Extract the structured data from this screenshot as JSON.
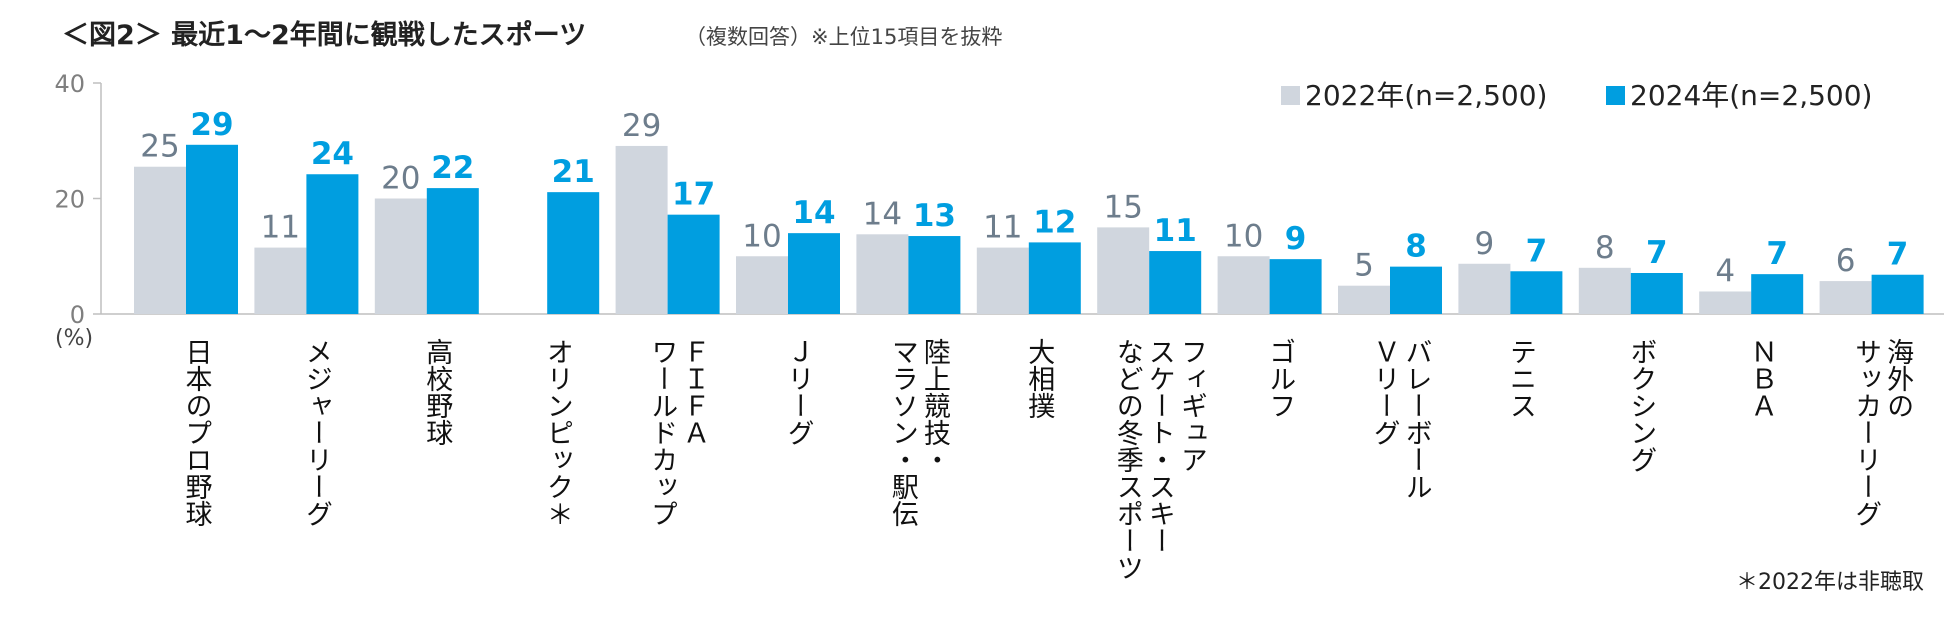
{
  "chart_data": {
    "type": "bar",
    "title": "＜図2＞ 最近1～2年間に観戦したスポーツ",
    "subtitle": "（複数回答）※上位15項目を抜粋",
    "ylabel": "(%)",
    "ylim": [
      0,
      40
    ],
    "yticks": [
      "0",
      "20",
      "40"
    ],
    "categories": [
      [
        "日本のプロ野球"
      ],
      [
        "メジャーリーグ"
      ],
      [
        "高校野球"
      ],
      [
        "オリンピック＊"
      ],
      [
        "ＦＩＦＡ",
        "ワールドカップ"
      ],
      [
        "Ｊリーグ"
      ],
      [
        "陸上競技・",
        "マラソン・駅伝"
      ],
      [
        "大相撲"
      ],
      [
        "フィギュア",
        "スケート・スキー",
        "などの冬季スポーツ"
      ],
      [
        "ゴルフ"
      ],
      [
        "バレーボール",
        "Ｖリーグ"
      ],
      [
        "テニス"
      ],
      [
        "ボクシング"
      ],
      [
        "ＮＢＡ"
      ],
      [
        "海外の",
        "サッカーリーグ"
      ]
    ],
    "series": [
      {
        "name": "2022年(n=2,500)",
        "color": "#d0d6de",
        "values": [
          25.5,
          11.5,
          20,
          null,
          29.1,
          10,
          13.8,
          11.5,
          15,
          10,
          4.9,
          8.7,
          8,
          3.9,
          5.7
        ],
        "labels": [
          "25",
          "11",
          "20",
          "",
          "29",
          "10",
          "14",
          "11",
          "15",
          "10",
          "5",
          "9",
          "8",
          "4",
          "6"
        ]
      },
      {
        "name": "2024年(n=2,500)",
        "color": "#009ee0",
        "values": [
          29.3,
          24.2,
          21.8,
          21.1,
          17.2,
          14,
          13.5,
          12.4,
          10.9,
          9.5,
          8.2,
          7.4,
          7.1,
          6.9,
          6.8
        ],
        "labels": [
          "29",
          "24",
          "22",
          "21",
          "17",
          "14",
          "13",
          "12",
          "11",
          "9",
          "8",
          "7",
          "7",
          "7",
          "7"
        ]
      }
    ],
    "footnote": "＊2022年は非聴取"
  }
}
